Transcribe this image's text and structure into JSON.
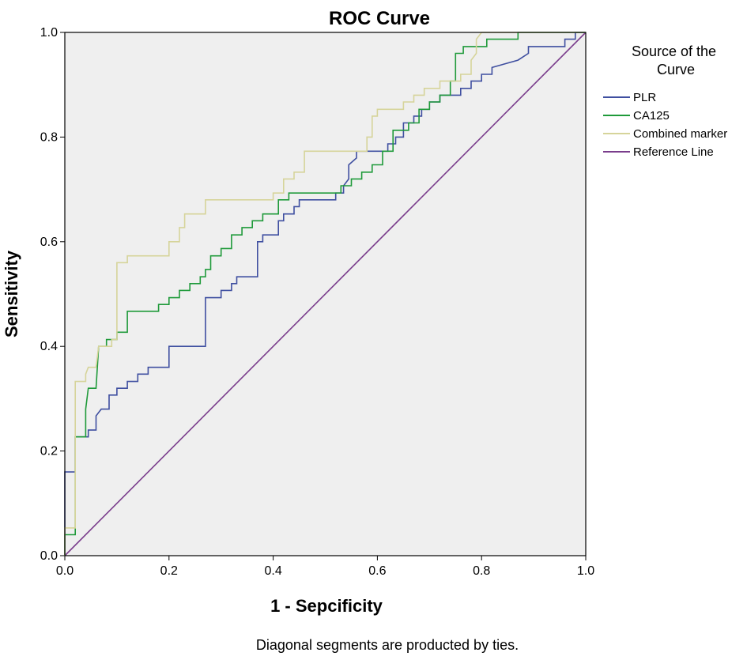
{
  "chart_data": {
    "type": "line",
    "title": "ROC Curve",
    "xlabel": "1 - Sepcificity",
    "ylabel": "Sensitivity",
    "xlim": [
      0.0,
      1.0
    ],
    "ylim": [
      0.0,
      1.0
    ],
    "x_ticks": [
      "0.0",
      "0.2",
      "0.4",
      "0.6",
      "0.8",
      "1.0"
    ],
    "y_ticks": [
      "0.0",
      "0.2",
      "0.4",
      "0.6",
      "0.8",
      "1.0"
    ],
    "grid": false,
    "legend_title": "Source of the Curve",
    "legend_position": "right",
    "footnote": "Diagonal segments are producted by ties.",
    "series": [
      {
        "name": "PLR",
        "color": "#3f4fa0",
        "points": [
          [
            0,
            0
          ],
          [
            0,
            0.16
          ],
          [
            0.02,
            0.16
          ],
          [
            0.02,
            0.227
          ],
          [
            0.045,
            0.227
          ],
          [
            0.045,
            0.24
          ],
          [
            0.06,
            0.24
          ],
          [
            0.06,
            0.267
          ],
          [
            0.07,
            0.28
          ],
          [
            0.085,
            0.28
          ],
          [
            0.085,
            0.307
          ],
          [
            0.1,
            0.307
          ],
          [
            0.1,
            0.32
          ],
          [
            0.12,
            0.32
          ],
          [
            0.12,
            0.333
          ],
          [
            0.14,
            0.333
          ],
          [
            0.14,
            0.347
          ],
          [
            0.16,
            0.347
          ],
          [
            0.16,
            0.36
          ],
          [
            0.2,
            0.36
          ],
          [
            0.2,
            0.4
          ],
          [
            0.27,
            0.4
          ],
          [
            0.27,
            0.493
          ],
          [
            0.3,
            0.493
          ],
          [
            0.3,
            0.507
          ],
          [
            0.32,
            0.507
          ],
          [
            0.32,
            0.52
          ],
          [
            0.33,
            0.52
          ],
          [
            0.33,
            0.533
          ],
          [
            0.37,
            0.533
          ],
          [
            0.37,
            0.6
          ],
          [
            0.38,
            0.6
          ],
          [
            0.38,
            0.613
          ],
          [
            0.41,
            0.613
          ],
          [
            0.41,
            0.64
          ],
          [
            0.42,
            0.64
          ],
          [
            0.42,
            0.653
          ],
          [
            0.44,
            0.653
          ],
          [
            0.44,
            0.667
          ],
          [
            0.45,
            0.667
          ],
          [
            0.45,
            0.68
          ],
          [
            0.52,
            0.68
          ],
          [
            0.52,
            0.693
          ],
          [
            0.535,
            0.693
          ],
          [
            0.535,
            0.707
          ],
          [
            0.545,
            0.72
          ],
          [
            0.545,
            0.747
          ],
          [
            0.56,
            0.76
          ],
          [
            0.56,
            0.773
          ],
          [
            0.62,
            0.773
          ],
          [
            0.62,
            0.787
          ],
          [
            0.635,
            0.787
          ],
          [
            0.635,
            0.8
          ],
          [
            0.65,
            0.8
          ],
          [
            0.65,
            0.827
          ],
          [
            0.67,
            0.827
          ],
          [
            0.67,
            0.84
          ],
          [
            0.685,
            0.84
          ],
          [
            0.685,
            0.853
          ],
          [
            0.7,
            0.853
          ],
          [
            0.7,
            0.867
          ],
          [
            0.72,
            0.867
          ],
          [
            0.72,
            0.88
          ],
          [
            0.76,
            0.88
          ],
          [
            0.76,
            0.893
          ],
          [
            0.78,
            0.893
          ],
          [
            0.78,
            0.907
          ],
          [
            0.8,
            0.907
          ],
          [
            0.8,
            0.92
          ],
          [
            0.82,
            0.92
          ],
          [
            0.82,
            0.933
          ],
          [
            0.87,
            0.947
          ],
          [
            0.89,
            0.96
          ],
          [
            0.89,
            0.973
          ],
          [
            0.96,
            0.973
          ],
          [
            0.96,
            0.987
          ],
          [
            0.98,
            0.987
          ],
          [
            0.98,
            1.0
          ],
          [
            1.0,
            1.0
          ]
        ]
      },
      {
        "name": "CA125",
        "color": "#1f9a3a",
        "points": [
          [
            0,
            0
          ],
          [
            0,
            0.04
          ],
          [
            0.02,
            0.04
          ],
          [
            0.02,
            0.227
          ],
          [
            0.04,
            0.227
          ],
          [
            0.04,
            0.28
          ],
          [
            0.045,
            0.32
          ],
          [
            0.06,
            0.32
          ],
          [
            0.065,
            0.4
          ],
          [
            0.08,
            0.4
          ],
          [
            0.08,
            0.413
          ],
          [
            0.1,
            0.413
          ],
          [
            0.1,
            0.427
          ],
          [
            0.12,
            0.427
          ],
          [
            0.12,
            0.467
          ],
          [
            0.18,
            0.467
          ],
          [
            0.18,
            0.48
          ],
          [
            0.2,
            0.48
          ],
          [
            0.2,
            0.493
          ],
          [
            0.22,
            0.493
          ],
          [
            0.22,
            0.507
          ],
          [
            0.24,
            0.507
          ],
          [
            0.24,
            0.52
          ],
          [
            0.26,
            0.52
          ],
          [
            0.26,
            0.533
          ],
          [
            0.27,
            0.533
          ],
          [
            0.27,
            0.547
          ],
          [
            0.28,
            0.547
          ],
          [
            0.28,
            0.573
          ],
          [
            0.3,
            0.573
          ],
          [
            0.3,
            0.587
          ],
          [
            0.32,
            0.587
          ],
          [
            0.32,
            0.613
          ],
          [
            0.34,
            0.613
          ],
          [
            0.34,
            0.627
          ],
          [
            0.36,
            0.627
          ],
          [
            0.36,
            0.64
          ],
          [
            0.38,
            0.64
          ],
          [
            0.38,
            0.653
          ],
          [
            0.41,
            0.653
          ],
          [
            0.41,
            0.68
          ],
          [
            0.43,
            0.68
          ],
          [
            0.43,
            0.693
          ],
          [
            0.53,
            0.693
          ],
          [
            0.53,
            0.707
          ],
          [
            0.55,
            0.707
          ],
          [
            0.55,
            0.72
          ],
          [
            0.57,
            0.72
          ],
          [
            0.57,
            0.733
          ],
          [
            0.59,
            0.733
          ],
          [
            0.59,
            0.747
          ],
          [
            0.61,
            0.747
          ],
          [
            0.61,
            0.773
          ],
          [
            0.63,
            0.773
          ],
          [
            0.63,
            0.813
          ],
          [
            0.66,
            0.813
          ],
          [
            0.66,
            0.827
          ],
          [
            0.68,
            0.827
          ],
          [
            0.68,
            0.853
          ],
          [
            0.7,
            0.853
          ],
          [
            0.7,
            0.867
          ],
          [
            0.72,
            0.867
          ],
          [
            0.72,
            0.88
          ],
          [
            0.74,
            0.88
          ],
          [
            0.74,
            0.907
          ],
          [
            0.75,
            0.907
          ],
          [
            0.75,
            0.96
          ],
          [
            0.765,
            0.96
          ],
          [
            0.765,
            0.973
          ],
          [
            0.81,
            0.973
          ],
          [
            0.81,
            0.987
          ],
          [
            0.87,
            0.987
          ],
          [
            0.87,
            1.0
          ],
          [
            1.0,
            1.0
          ]
        ]
      },
      {
        "name": "Combined marker",
        "color": "#d6d49a",
        "points": [
          [
            0,
            0
          ],
          [
            0,
            0.053
          ],
          [
            0.02,
            0.053
          ],
          [
            0.02,
            0.333
          ],
          [
            0.04,
            0.333
          ],
          [
            0.04,
            0.347
          ],
          [
            0.045,
            0.36
          ],
          [
            0.06,
            0.36
          ],
          [
            0.065,
            0.4
          ],
          [
            0.09,
            0.4
          ],
          [
            0.09,
            0.413
          ],
          [
            0.1,
            0.413
          ],
          [
            0.1,
            0.56
          ],
          [
            0.12,
            0.56
          ],
          [
            0.12,
            0.573
          ],
          [
            0.2,
            0.573
          ],
          [
            0.2,
            0.6
          ],
          [
            0.22,
            0.6
          ],
          [
            0.22,
            0.627
          ],
          [
            0.23,
            0.627
          ],
          [
            0.23,
            0.653
          ],
          [
            0.27,
            0.653
          ],
          [
            0.27,
            0.68
          ],
          [
            0.4,
            0.68
          ],
          [
            0.4,
            0.693
          ],
          [
            0.42,
            0.693
          ],
          [
            0.42,
            0.72
          ],
          [
            0.44,
            0.72
          ],
          [
            0.44,
            0.733
          ],
          [
            0.46,
            0.733
          ],
          [
            0.46,
            0.773
          ],
          [
            0.58,
            0.773
          ],
          [
            0.58,
            0.8
          ],
          [
            0.59,
            0.8
          ],
          [
            0.59,
            0.84
          ],
          [
            0.6,
            0.84
          ],
          [
            0.6,
            0.853
          ],
          [
            0.65,
            0.853
          ],
          [
            0.65,
            0.867
          ],
          [
            0.67,
            0.867
          ],
          [
            0.67,
            0.88
          ],
          [
            0.69,
            0.88
          ],
          [
            0.69,
            0.893
          ],
          [
            0.72,
            0.893
          ],
          [
            0.72,
            0.907
          ],
          [
            0.76,
            0.907
          ],
          [
            0.76,
            0.92
          ],
          [
            0.78,
            0.92
          ],
          [
            0.78,
            0.947
          ],
          [
            0.79,
            0.96
          ],
          [
            0.79,
            0.987
          ],
          [
            0.8,
            1.0
          ],
          [
            1.0,
            1.0
          ]
        ]
      },
      {
        "name": "Reference Line",
        "color": "#7a3d8c",
        "points": [
          [
            0,
            0
          ],
          [
            1,
            1
          ]
        ]
      }
    ]
  }
}
